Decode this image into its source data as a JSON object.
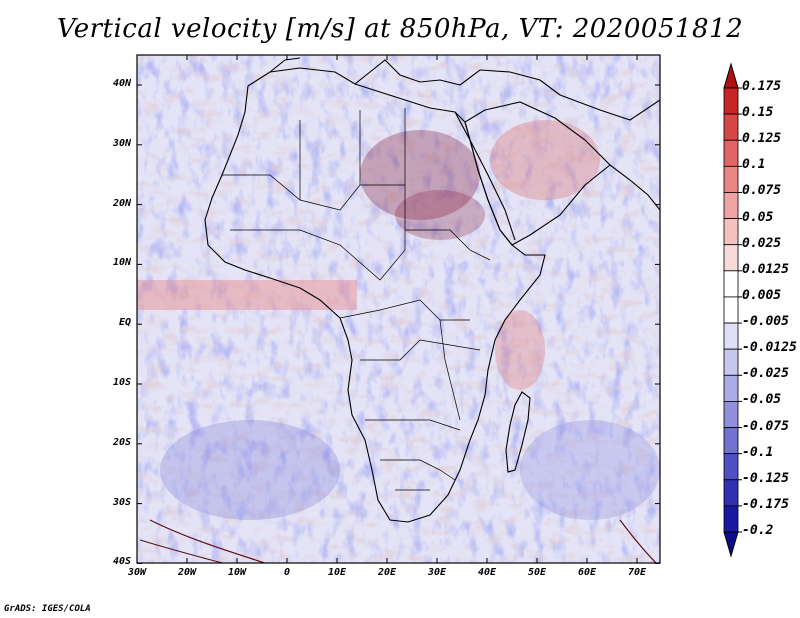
{
  "title": "Vertical velocity [m/s] at 850hPa, VT: 2020051812",
  "footer": "GrADS: IGES/COLA",
  "lat_labels": [
    "40N",
    "30N",
    "20N",
    "10N",
    "EQ",
    "10S",
    "20S",
    "30S",
    "40S"
  ],
  "lon_labels": [
    "30W",
    "20W",
    "10W",
    "0",
    "10E",
    "20E",
    "30E",
    "40E",
    "50E",
    "60E",
    "70E"
  ],
  "colorbar": {
    "labels": [
      "0.175",
      "0.15",
      "0.125",
      "0.1",
      "0.075",
      "0.05",
      "0.025",
      "0.0125",
      "0.005",
      "-0.005",
      "-0.0125",
      "-0.025",
      "-0.05",
      "-0.075",
      "-0.1",
      "-0.125",
      "-0.175",
      "-0.2"
    ],
    "colors": [
      "#b01010",
      "#c82626",
      "#d84646",
      "#e26464",
      "#e98686",
      "#efa3a3",
      "#f4c1c1",
      "#f8dada",
      "#ffffff",
      "#ffffff",
      "#dedef6",
      "#c6c6ef",
      "#acace6",
      "#9090dc",
      "#7272d0",
      "#5050c2",
      "#3030b0",
      "#1a1aa0",
      "#0c0c8a"
    ]
  }
}
